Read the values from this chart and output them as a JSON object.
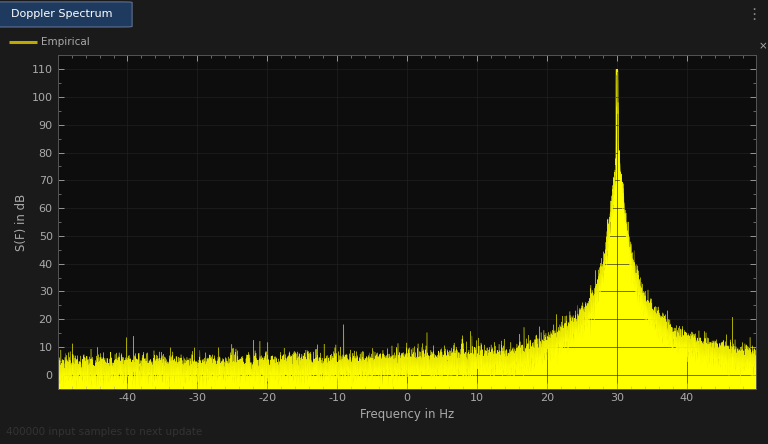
{
  "title": "Doppler Spectrum",
  "legend_label": "Empirical",
  "xlabel": "Frequency in Hz",
  "ylabel": "S(F) in dB",
  "xlim": [
    -50000,
    50000
  ],
  "ylim": [
    -5,
    115
  ],
  "yticks": [
    0,
    10,
    20,
    30,
    40,
    50,
    60,
    70,
    80,
    90,
    100,
    110
  ],
  "xticks": [
    -40000,
    -30000,
    -20000,
    -10000,
    0,
    10000,
    20000,
    30000,
    40000
  ],
  "xtick_labels": [
    "-40",
    "-30",
    "-20",
    "-10",
    "0",
    "10",
    "20",
    "30",
    "40"
  ],
  "background_color": "#1a1a1a",
  "plot_bg_color": "#0d0d0d",
  "line_color": "#ffff00",
  "text_color": "#aaaaaa",
  "title_bg_color": "#1e3a5f",
  "doppler_shift": 30000,
  "peak_height": 110,
  "bottom_bar_color": "#c8c8c8",
  "bottom_text": "400000 input samples to next update",
  "legend_line_color": "#bbaa00",
  "grid_color": "#222222"
}
